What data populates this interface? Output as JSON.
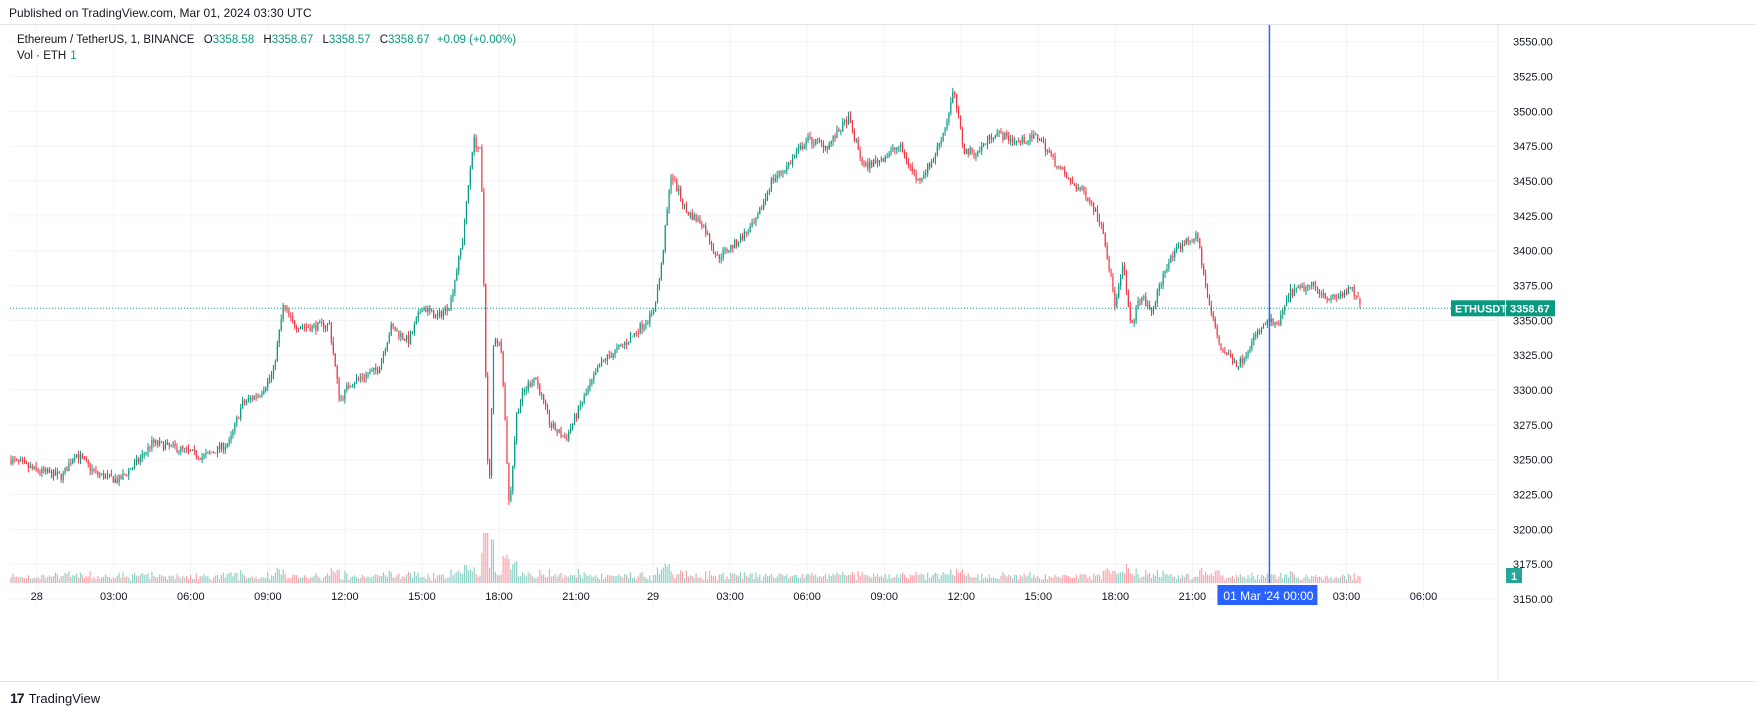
{
  "header": {
    "published": "Published on TradingView.com, Mar 01, 2024 03:30 UTC"
  },
  "legend": {
    "symbol": "Ethereum / TetherUS, 1, BINANCE",
    "open_label": "O",
    "open": "3358.58",
    "high_label": "H",
    "high": "3358.67",
    "low_label": "L",
    "low": "3358.57",
    "close_label": "C",
    "close": "3358.67",
    "change": "+0.09 (+0.00%)",
    "volume_label": "Vol · ETH",
    "volume_value": "1"
  },
  "price_tag": {
    "symbol": "ETHUSDT",
    "value": "3358.67"
  },
  "crosshair_tag": {
    "date": "01 Mar '24",
    "time": "00:00"
  },
  "volume_tag": "1",
  "footer": {
    "brand": "TradingView",
    "logo_text": "17"
  },
  "colors": {
    "up": "#089981",
    "down": "#f23645",
    "crosshair": "#2962ff",
    "grid": "#f0f3fa",
    "text": "#131722"
  },
  "chart_data": {
    "type": "candlestick",
    "symbol": "ETHUSDT",
    "interval": "1",
    "exchange": "BINANCE",
    "y_axis": {
      "ticks": [
        3150,
        3175,
        3200,
        3225,
        3250,
        3275,
        3300,
        3325,
        3350,
        3375,
        3400,
        3425,
        3450,
        3475,
        3500,
        3525,
        3550
      ],
      "range": [
        3145,
        3562
      ]
    },
    "x_axis": {
      "ticks": [
        "28",
        "03:00",
        "06:00",
        "09:00",
        "12:00",
        "15:00",
        "18:00",
        "21:00",
        "29",
        "03:00",
        "06:00",
        "09:00",
        "12:00",
        "15:00",
        "18:00",
        "21:00",
        "00:00",
        "03:00",
        "06:00"
      ],
      "tick_hours": [
        0,
        3,
        6,
        9,
        12,
        15,
        18,
        21,
        24,
        27,
        30,
        33,
        36,
        39,
        42,
        45,
        48,
        51,
        54
      ],
      "range_hours": [
        -1.04,
        56.9
      ]
    },
    "last_price": 3358.67,
    "crosshair_hour": 48,
    "price_path": {
      "hours": [
        -1.0,
        0.0,
        1.0,
        1.5,
        2.3,
        3.2,
        4.0,
        4.5,
        5.5,
        6.5,
        7.5,
        8.0,
        8.7,
        9.2,
        9.6,
        10.0,
        10.6,
        11.4,
        11.8,
        12.2,
        13.3,
        13.8,
        14.5,
        15.0,
        15.6,
        16.1,
        16.6,
        17.0,
        17.3,
        17.6,
        17.8,
        18.1,
        18.4,
        18.7,
        19.0,
        19.4,
        20.0,
        20.6,
        21.2,
        22.0,
        23.0,
        24.0,
        24.3,
        24.7,
        25.3,
        25.9,
        26.5,
        27.2,
        28.0,
        28.6,
        29.2,
        30.0,
        30.8,
        31.6,
        32.2,
        32.8,
        33.6,
        34.3,
        34.9,
        35.4,
        35.7,
        36.1,
        36.6,
        37.3,
        38.2,
        39.0,
        39.6,
        40.2,
        40.9,
        41.5,
        42.0,
        42.3,
        42.6,
        43.0,
        43.4,
        44.0,
        44.6,
        45.2,
        45.6,
        46.1,
        46.8,
        47.5,
        48.0,
        48.3,
        48.8,
        49.7,
        50.4,
        51.2,
        51.6
      ],
      "prices": [
        3250,
        3242,
        3238,
        3255,
        3240,
        3235,
        3250,
        3262,
        3258,
        3252,
        3262,
        3290,
        3298,
        3312,
        3360,
        3347,
        3345,
        3347,
        3292,
        3305,
        3315,
        3345,
        3335,
        3360,
        3352,
        3362,
        3410,
        3480,
        3470,
        3215,
        3340,
        3330,
        3215,
        3285,
        3300,
        3310,
        3275,
        3265,
        3290,
        3320,
        3335,
        3355,
        3385,
        3455,
        3428,
        3420,
        3395,
        3405,
        3420,
        3450,
        3460,
        3480,
        3475,
        3495,
        3460,
        3465,
        3475,
        3450,
        3465,
        3490,
        3515,
        3472,
        3470,
        3485,
        3478,
        3482,
        3465,
        3450,
        3440,
        3418,
        3360,
        3390,
        3345,
        3368,
        3355,
        3390,
        3405,
        3410,
        3365,
        3330,
        3318,
        3340,
        3350,
        3345,
        3370,
        3375,
        3365,
        3372,
        3358.67
      ]
    }
  }
}
